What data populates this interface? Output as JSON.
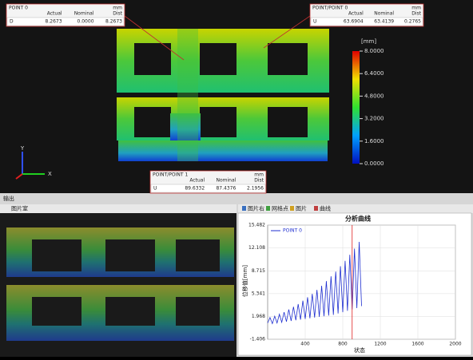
{
  "viewer": {
    "boxes": [
      {
        "title": "POINT 0",
        "unit": "mm",
        "headers": [
          "Actual",
          "Nominal",
          "Dist"
        ],
        "row_label": "D",
        "values": [
          "8.2673",
          "0.0000",
          "8.2673"
        ]
      },
      {
        "title": "POINT/POINT 0",
        "unit": "mm",
        "headers": [
          "Actual",
          "Nominal",
          "Dist"
        ],
        "row_label": "U",
        "values": [
          "63.6904",
          "63.4139",
          "0.2765"
        ]
      },
      {
        "title": "POINT/POINT 1",
        "unit": "mm",
        "headers": [
          "Actual",
          "Nominal",
          "Dist"
        ],
        "row_label": "U",
        "values": [
          "89.6332",
          "87.4376",
          "2.1956"
        ]
      }
    ],
    "colorbar": {
      "unit": "[mm]",
      "lim": [
        0,
        8
      ],
      "ticks": [
        {
          "value": 8,
          "label": "8.0000"
        },
        {
          "value": 6.4,
          "label": "6.4000"
        },
        {
          "value": 4.8,
          "label": "4.8000"
        },
        {
          "value": 3.2,
          "label": "3.2000"
        },
        {
          "value": 1.6,
          "label": "1.6000"
        },
        {
          "value": 0,
          "label": "0.0000"
        }
      ]
    },
    "axes": [
      "Y",
      "X"
    ]
  },
  "panel_label": "输出",
  "image_tab": "图片室",
  "tabs": [
    "图片右",
    "网格点",
    "图片",
    "曲线"
  ],
  "chart_data": {
    "type": "line",
    "title": "分析曲线",
    "x_label": "状态",
    "y_label": "位移值[mm]",
    "x": [
      0,
      25,
      50,
      75,
      100,
      125,
      150,
      175,
      200,
      225,
      250,
      275,
      300,
      325,
      350,
      375,
      400,
      425,
      450,
      475,
      500,
      525,
      550,
      575,
      600,
      625,
      650,
      675,
      700,
      725,
      750,
      775,
      800,
      825,
      850,
      875,
      900,
      925,
      950,
      975,
      1000
    ],
    "series": [
      {
        "name": "POINT 0",
        "color": "#1f2fd0",
        "values": [
          1.0,
          1.8,
          0.9,
          2.0,
          1.0,
          2.3,
          1.1,
          2.6,
          1.2,
          3.0,
          1.3,
          3.4,
          1.4,
          3.8,
          1.5,
          4.3,
          1.6,
          4.8,
          1.7,
          5.3,
          1.8,
          5.9,
          1.9,
          6.5,
          2.0,
          7.2,
          2.1,
          7.9,
          2.2,
          8.6,
          2.4,
          9.4,
          2.6,
          10.2,
          2.8,
          11.1,
          3.0,
          12.0,
          3.2,
          13.0,
          3.5
        ]
      }
    ],
    "cursor_x": 900,
    "xlim": [
      0,
      2000
    ],
    "xticks": [
      400,
      800,
      1200,
      1600,
      2000
    ],
    "ylim": [
      -1.406,
      15.482
    ],
    "yticks": [
      15.482,
      12.108,
      8.715,
      5.341,
      1.968,
      -1.406
    ],
    "grid": true
  }
}
